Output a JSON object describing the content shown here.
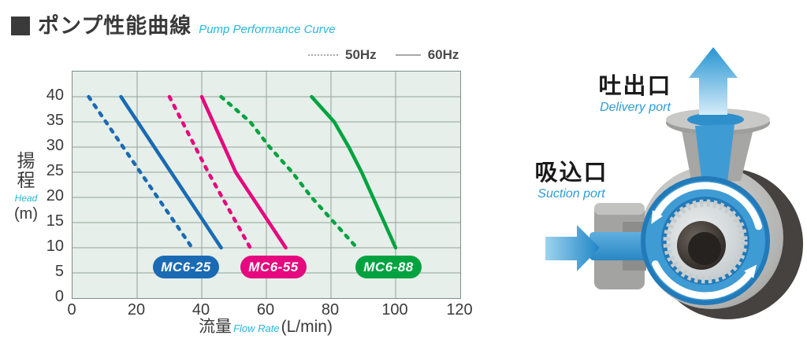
{
  "page": {
    "bg": "#ffffff"
  },
  "header": {
    "title_jp": "ポンプ性能曲線",
    "title_en": "Pump Performance Curve",
    "accent_color": "#29b6d8"
  },
  "legend": {
    "items": [
      {
        "label": "50Hz",
        "style": "dashed"
      },
      {
        "label": "60Hz",
        "style": "solid"
      }
    ],
    "sample_color": "#a8a8a8"
  },
  "chart_data": {
    "type": "line",
    "title": "ポンプ性能曲線 / Pump Performance Curve",
    "xlabel_jp": "流量",
    "xlabel_en": "Flow Rate",
    "xlabel_unit": "(L/min)",
    "ylabel_jp": "揚程",
    "ylabel_en": "Head",
    "ylabel_unit": "(m)",
    "xlim": [
      0,
      120
    ],
    "ylim": [
      0,
      45
    ],
    "xticks": [
      0,
      20,
      40,
      60,
      80,
      100,
      120
    ],
    "yticks": [
      0,
      5,
      10,
      15,
      20,
      25,
      30,
      35,
      40
    ],
    "grid": true,
    "legend_position": "top-right",
    "plot_bg": "#e6efe9",
    "grid_color": "#93a39c",
    "series": [
      {
        "model": "MC6-25",
        "freq": "50Hz",
        "line": "dashed",
        "color": "#1a6ab4",
        "points": [
          [
            5,
            40
          ],
          [
            21,
            25
          ],
          [
            37,
            10
          ]
        ]
      },
      {
        "model": "MC6-25",
        "freq": "60Hz",
        "line": "solid",
        "color": "#1a6ab4",
        "points": [
          [
            15,
            40
          ],
          [
            30.5,
            25
          ],
          [
            46,
            10
          ]
        ]
      },
      {
        "model": "MC6-55",
        "freq": "50Hz",
        "line": "dashed",
        "color": "#e5087e",
        "points": [
          [
            30,
            40
          ],
          [
            42,
            25
          ],
          [
            55,
            10
          ]
        ]
      },
      {
        "model": "MC6-55",
        "freq": "60Hz",
        "line": "solid",
        "color": "#e5087e",
        "points": [
          [
            40,
            40
          ],
          [
            50.5,
            25
          ],
          [
            66,
            10
          ]
        ]
      },
      {
        "model": "MC6-88",
        "freq": "50Hz",
        "line": "dashed",
        "color": "#00a33f",
        "points": [
          [
            46,
            40
          ],
          [
            55,
            35
          ],
          [
            61,
            30
          ],
          [
            68,
            25
          ],
          [
            74,
            20
          ],
          [
            81,
            15
          ],
          [
            88,
            10
          ]
        ]
      },
      {
        "model": "MC6-88",
        "freq": "60Hz",
        "line": "solid",
        "color": "#00a33f",
        "points": [
          [
            74,
            40
          ],
          [
            81,
            35
          ],
          [
            85.5,
            30
          ],
          [
            89.5,
            25
          ],
          [
            93,
            20
          ],
          [
            96.5,
            15
          ],
          [
            100,
            10
          ]
        ]
      }
    ],
    "badges": [
      {
        "label": "MC6-25",
        "color": "#1a6ab4"
      },
      {
        "label": "MC6-55",
        "color": "#e5087e"
      },
      {
        "label": "MC6-88",
        "color": "#00a33f"
      }
    ]
  },
  "illustration": {
    "delivery_jp": "吐出口",
    "delivery_en": "Delivery port",
    "suction_jp": "吸込口",
    "suction_en": "Suction port",
    "label_en_color": "#2e9bd3",
    "water_color": "#2e8fcb"
  }
}
